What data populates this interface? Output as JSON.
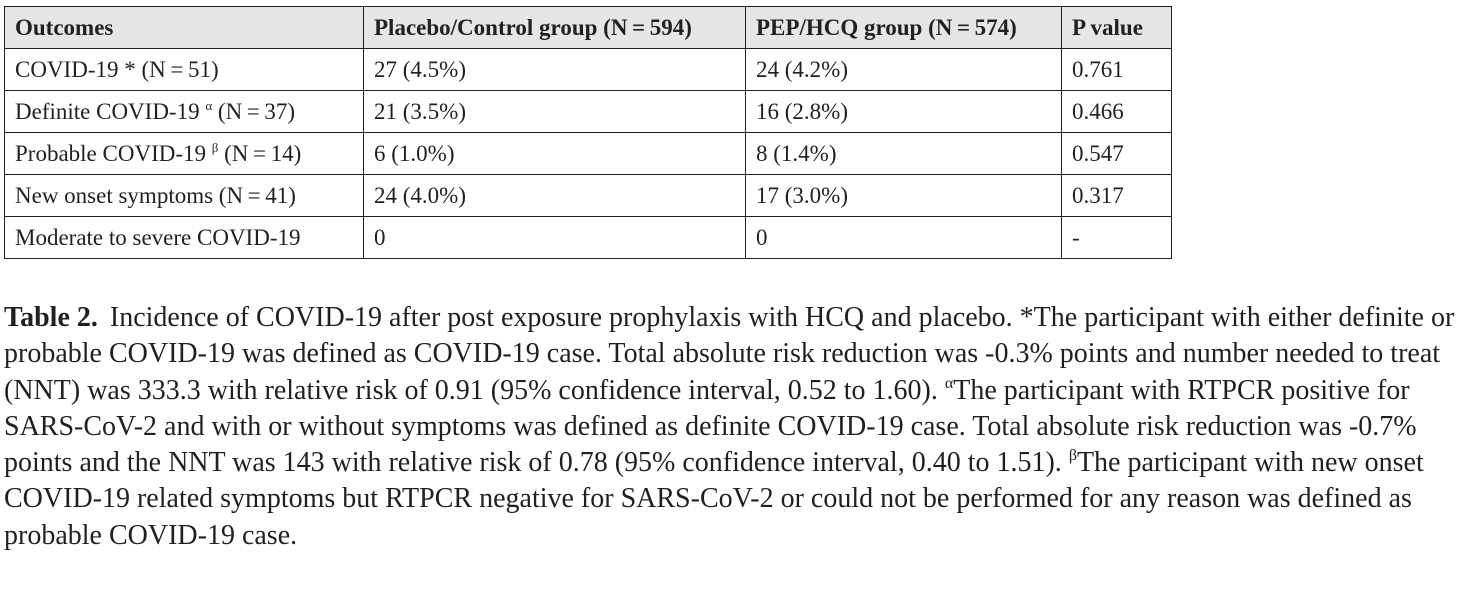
{
  "table": {
    "headers": [
      "Outcomes",
      "Placebo/Control group (N = 594)",
      "PEP/HCQ group (N = 574)",
      "P value"
    ],
    "rows": [
      {
        "outcome": "COVID-19",
        "mark": "*",
        "n": "(N = 51)",
        "placebo": "27 (4.5%)",
        "pep": "24 (4.2%)",
        "p": "0.761"
      },
      {
        "outcome": "Definite COVID-19",
        "mark": "α",
        "n": "(N = 37)",
        "placebo": "21 (3.5%)",
        "pep": "16 (2.8%)",
        "p": "0.466"
      },
      {
        "outcome": "Probable COVID-19",
        "mark": "β",
        "n": "(N = 14)",
        "placebo": "6 (1.0%)",
        "pep": "8 (1.4%)",
        "p": "0.547"
      },
      {
        "outcome": "New onset symptoms (N = 41)",
        "mark": "",
        "n": "",
        "placebo": "24 (4.0%)",
        "pep": "17 (3.0%)",
        "p": "0.317"
      },
      {
        "outcome": "Moderate to severe COVID-19",
        "mark": "",
        "n": "",
        "placebo": "0",
        "pep": "0",
        "p": "-"
      }
    ]
  },
  "caption": {
    "label": "Table 2.",
    "intro": "Incidence of COVID-19 after post exposure prophylaxis with HCQ and placebo.",
    "mark_star": "*",
    "note_star": "The participant with either definite or probable COVID-19 was defined as COVID-19 case. Total absolute risk reduction was -0.3% points and number needed to treat (NNT) was 333.3 with relative risk of 0.91 (95% confidence interval, 0.52 to 1.60).",
    "mark_alpha": "α",
    "note_alpha": "The participant with RTPCR positive for SARS-CoV-2 and with or without symptoms was defined as definite COVID-19 case. Total absolute risk reduction was -0.7% points and the NNT was 143 with relative risk of 0.78 (95% confidence interval, 0.40 to 1.51).",
    "mark_beta": "β",
    "note_beta": "The participant with new onset COVID-19 related symptoms but RTPCR negative for SARS-CoV-2 or could not be performed for any reason was defined as probable COVID-19 case."
  }
}
